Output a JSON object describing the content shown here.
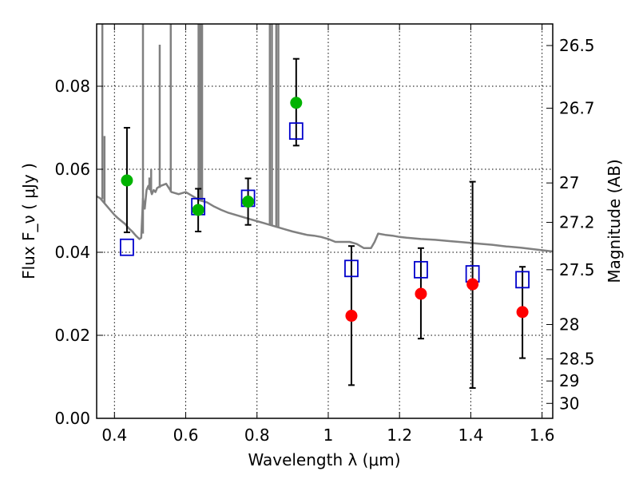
{
  "chart_data": {
    "type": "scatter",
    "xlabel": "Wavelength  λ (μm)",
    "ylabel": "Flux  F_ν  ( μJy )",
    "ylabel_right": "Magnitude (AB)",
    "xlim": [
      0.35,
      1.63
    ],
    "ylim": [
      0.0,
      0.095
    ],
    "grid": true,
    "x_ticks": [
      0.4,
      0.6,
      0.8,
      1.0,
      1.2,
      1.4,
      1.6
    ],
    "x_tick_labels": [
      "0.4",
      "0.6",
      "0.8",
      "1",
      "1.2",
      "1.4",
      "1.6"
    ],
    "y_ticks": [
      0.0,
      0.02,
      0.04,
      0.06,
      0.08
    ],
    "y_tick_labels": [
      "0.00",
      "0.02",
      "0.04",
      "0.06",
      "0.08"
    ],
    "right_ticks": [
      {
        "label": "26.5",
        "flux": 0.0898
      },
      {
        "label": "26.7",
        "flux": 0.0747
      },
      {
        "label": "27",
        "flux": 0.0567
      },
      {
        "label": "27.2",
        "flux": 0.0472
      },
      {
        "label": "27.5",
        "flux": 0.0358
      },
      {
        "label": "28",
        "flux": 0.0226
      },
      {
        "label": "28.5",
        "flux": 0.0143
      },
      {
        "label": "29",
        "flux": 0.009
      },
      {
        "label": "30",
        "flux": 0.0036
      }
    ],
    "colors": {
      "detected": "#00b300",
      "upper_limit": "#ff0000",
      "model": "#0000cc",
      "template": "#808080",
      "errorbar": "#000000"
    },
    "observed_detections": [
      {
        "x": 0.435,
        "y": 0.0573,
        "ylo": 0.0448,
        "yhi": 0.07
      },
      {
        "x": 0.635,
        "y": 0.0502,
        "ylo": 0.045,
        "yhi": 0.0553
      },
      {
        "x": 0.775,
        "y": 0.0522,
        "ylo": 0.0466,
        "yhi": 0.0578
      },
      {
        "x": 0.91,
        "y": 0.076,
        "ylo": 0.0657,
        "yhi": 0.0866
      }
    ],
    "observed_faint": [
      {
        "x": 1.065,
        "y": 0.0247,
        "ylo": 0.008,
        "yhi": 0.0415
      },
      {
        "x": 1.26,
        "y": 0.03,
        "ylo": 0.0192,
        "yhi": 0.041
      },
      {
        "x": 1.405,
        "y": 0.0323,
        "ylo": 0.0073,
        "yhi": 0.057
      },
      {
        "x": 1.545,
        "y": 0.0256,
        "ylo": 0.0145,
        "yhi": 0.0365
      }
    ],
    "model_photometry": [
      {
        "x": 0.435,
        "y": 0.0412
      },
      {
        "x": 0.635,
        "y": 0.051
      },
      {
        "x": 0.775,
        "y": 0.053
      },
      {
        "x": 0.91,
        "y": 0.0692
      },
      {
        "x": 1.065,
        "y": 0.0361
      },
      {
        "x": 1.26,
        "y": 0.0358
      },
      {
        "x": 1.405,
        "y": 0.0348
      },
      {
        "x": 1.545,
        "y": 0.0334
      }
    ],
    "template_spectrum": [
      [
        0.35,
        0.0535
      ],
      [
        0.36,
        0.053
      ],
      [
        0.37,
        0.052
      ],
      [
        0.38,
        0.051
      ],
      [
        0.39,
        0.05
      ],
      [
        0.4,
        0.049
      ],
      [
        0.41,
        0.0482
      ],
      [
        0.42,
        0.0475
      ],
      [
        0.43,
        0.0468
      ],
      [
        0.44,
        0.0458
      ],
      [
        0.45,
        0.045
      ],
      [
        0.46,
        0.044
      ],
      [
        0.47,
        0.0432
      ],
      [
        0.475,
        0.0435
      ],
      [
        0.48,
        0.053
      ],
      [
        0.485,
        0.0505
      ],
      [
        0.49,
        0.055
      ],
      [
        0.495,
        0.056
      ],
      [
        0.5,
        0.0555
      ],
      [
        0.505,
        0.054
      ],
      [
        0.51,
        0.055
      ],
      [
        0.515,
        0.0545
      ],
      [
        0.52,
        0.0555
      ],
      [
        0.53,
        0.056
      ],
      [
        0.545,
        0.0565
      ],
      [
        0.56,
        0.0545
      ],
      [
        0.58,
        0.054
      ],
      [
        0.6,
        0.0545
      ],
      [
        0.62,
        0.0535
      ],
      [
        0.64,
        0.0525
      ],
      [
        0.66,
        0.052
      ],
      [
        0.68,
        0.051
      ],
      [
        0.7,
        0.0502
      ],
      [
        0.72,
        0.0495
      ],
      [
        0.74,
        0.049
      ],
      [
        0.76,
        0.0485
      ],
      [
        0.78,
        0.048
      ],
      [
        0.8,
        0.0475
      ],
      [
        0.82,
        0.047
      ],
      [
        0.84,
        0.0465
      ],
      [
        0.86,
        0.046
      ],
      [
        0.88,
        0.0455
      ],
      [
        0.9,
        0.045
      ],
      [
        0.92,
        0.0446
      ],
      [
        0.94,
        0.0442
      ],
      [
        0.96,
        0.044
      ],
      [
        0.98,
        0.0437
      ],
      [
        1.0,
        0.0432
      ],
      [
        1.02,
        0.0425
      ],
      [
        1.04,
        0.0425
      ],
      [
        1.06,
        0.0425
      ],
      [
        1.08,
        0.042
      ],
      [
        1.1,
        0.041
      ],
      [
        1.12,
        0.041
      ],
      [
        1.13,
        0.0425
      ],
      [
        1.14,
        0.0445
      ],
      [
        1.16,
        0.0442
      ],
      [
        1.18,
        0.044
      ],
      [
        1.2,
        0.0437
      ],
      [
        1.22,
        0.0435
      ],
      [
        1.26,
        0.0432
      ],
      [
        1.3,
        0.043
      ],
      [
        1.34,
        0.0427
      ],
      [
        1.38,
        0.0424
      ],
      [
        1.42,
        0.0421
      ],
      [
        1.46,
        0.0418
      ],
      [
        1.5,
        0.0414
      ],
      [
        1.54,
        0.0411
      ],
      [
        1.58,
        0.0407
      ],
      [
        1.63,
        0.0402
      ]
    ],
    "template_emission_lines": [
      {
        "x": 0.366,
        "top": 0.095,
        "base": 0.0528
      },
      {
        "x": 0.372,
        "top": 0.068,
        "base": 0.0518
      },
      {
        "x": 0.48,
        "top": 0.095,
        "base": 0.0445
      },
      {
        "x": 0.498,
        "top": 0.058,
        "base": 0.055
      },
      {
        "x": 0.503,
        "top": 0.06,
        "base": 0.0545
      },
      {
        "x": 0.527,
        "top": 0.09,
        "base": 0.0555
      },
      {
        "x": 0.558,
        "top": 0.095,
        "base": 0.0545
      },
      {
        "x": 0.636,
        "top": 0.095,
        "base": 0.0525
      },
      {
        "x": 0.641,
        "top": 0.095,
        "base": 0.0525
      },
      {
        "x": 0.646,
        "top": 0.095,
        "base": 0.0525
      },
      {
        "x": 0.836,
        "top": 0.095,
        "base": 0.0465
      },
      {
        "x": 0.842,
        "top": 0.095,
        "base": 0.0465
      },
      {
        "x": 0.854,
        "top": 0.095,
        "base": 0.0462
      },
      {
        "x": 0.86,
        "top": 0.095,
        "base": 0.046
      }
    ]
  }
}
